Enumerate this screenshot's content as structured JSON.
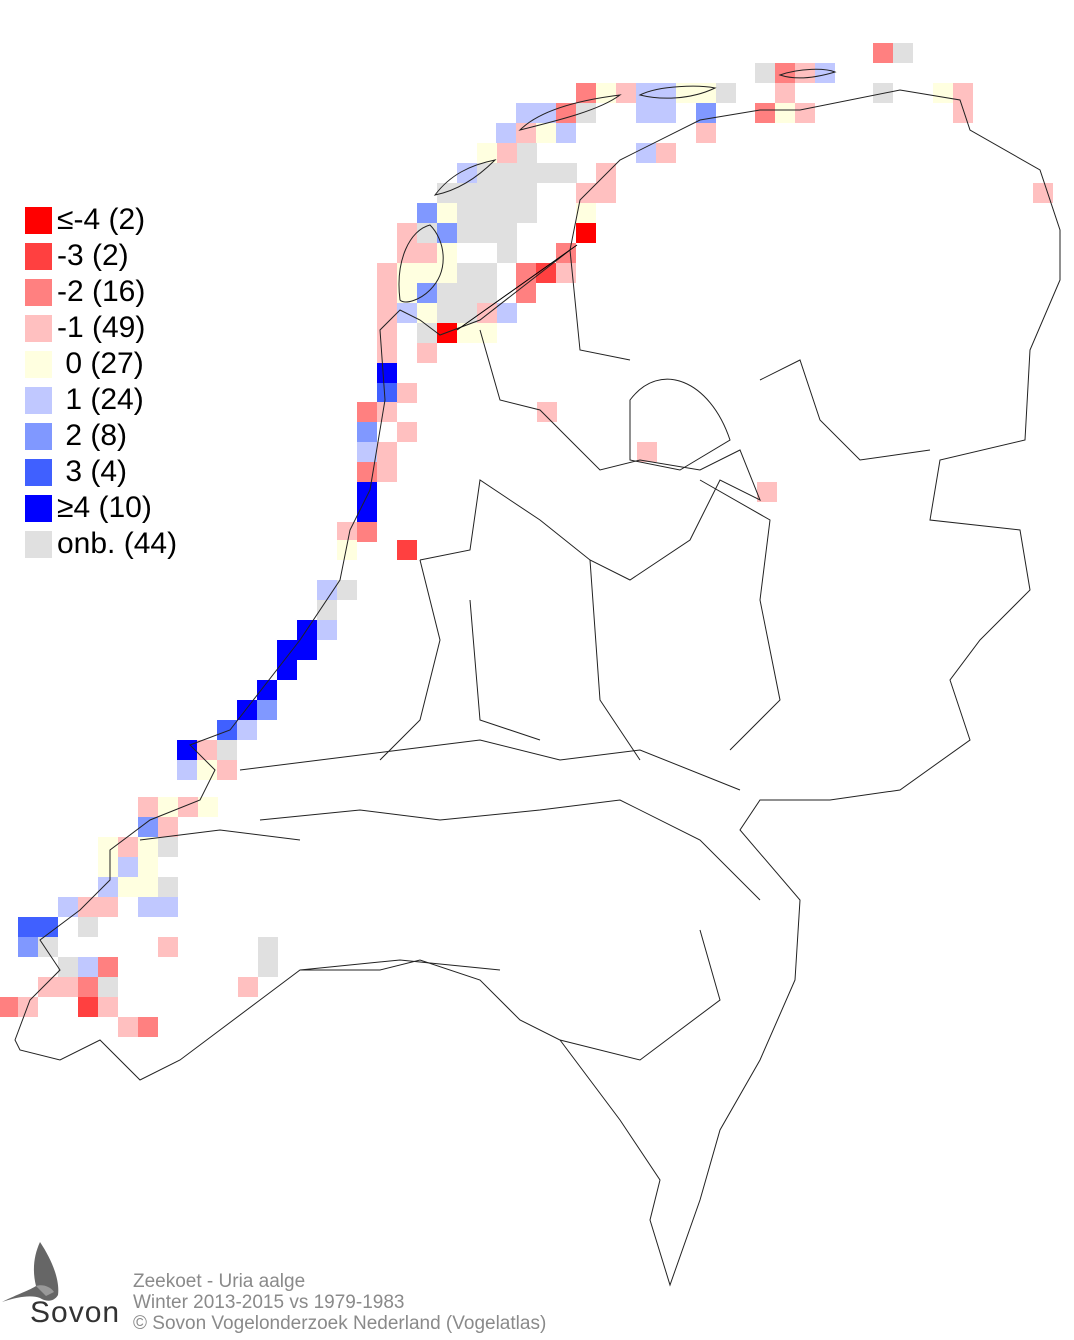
{
  "legend": [
    {
      "label": "≤-4 (2)",
      "color": "#ff0000"
    },
    {
      "label": "-3 (2)",
      "color": "#ff4040"
    },
    {
      "label": "-2 (16)",
      "color": "#ff8080"
    },
    {
      "label": "-1 (49)",
      "color": "#ffc0c0"
    },
    {
      "label": " 0 (27)",
      "color": "#ffffe0"
    },
    {
      "label": " 1 (24)",
      "color": "#c0c8ff"
    },
    {
      "label": " 2 (8)",
      "color": "#8098ff"
    },
    {
      "label": " 3 (4)",
      "color": "#4060ff"
    },
    {
      "label": "≥4 (10)",
      "color": "#0000ff"
    },
    {
      "label": "onb. (44)",
      "color": "#e0e0e0"
    }
  ],
  "footer": {
    "species": "Zeekoet - Uria aalge",
    "period": "Winter 2013-2015 vs 1979-1983",
    "copyright": "© Sovon Vogelonderzoek Nederland (Vogelatlas)"
  },
  "logo": {
    "text": "Sovon"
  }
}
